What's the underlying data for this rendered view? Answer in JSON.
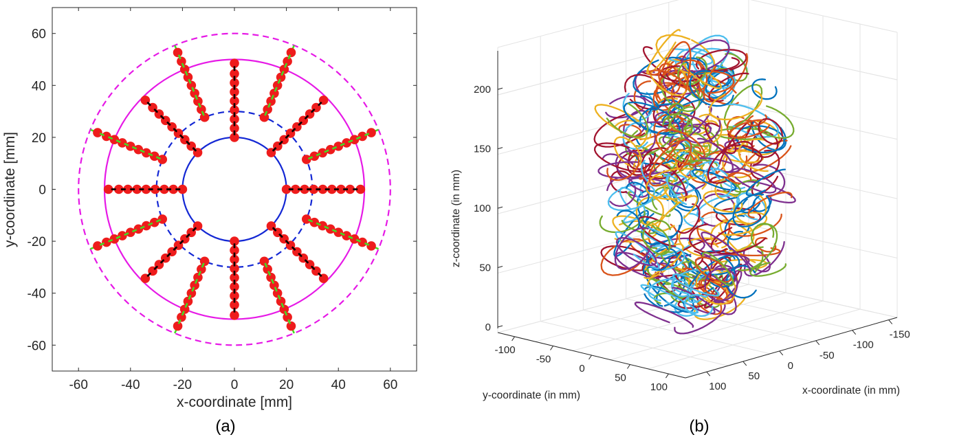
{
  "chart_data": [
    {
      "type": "scatter",
      "panel_label": "(a)",
      "xlabel": "x-coordinate [mm]",
      "ylabel": "y-coordinate [mm]",
      "xlim": [
        -70,
        70
      ],
      "ylim": [
        -70,
        70
      ],
      "xticks": [
        -60,
        -40,
        -20,
        0,
        20,
        40,
        60
      ],
      "yticks": [
        -60,
        -40,
        -20,
        0,
        20,
        40,
        60
      ],
      "grid": false,
      "circles": [
        {
          "name": "inner boundary",
          "radius": 20,
          "style": "solid",
          "color": "#1428d4"
        },
        {
          "name": "inner dashed",
          "radius": 30,
          "style": "dashed",
          "color": "#1428d4"
        },
        {
          "name": "outer boundary",
          "radius": 50,
          "style": "solid",
          "color": "#e619e6"
        },
        {
          "name": "outer dashed",
          "radius": 60,
          "style": "dashed",
          "color": "#e619e6"
        }
      ],
      "rays": {
        "count": 16,
        "start_angle_deg": 90,
        "step_deg": 22.5,
        "point_color": "#ee1c1c",
        "black_segment_color": "#000000",
        "green_segment_color": "#44dd22",
        "black_type": {
          "radii": [
            20,
            23.5,
            27,
            30.5,
            34,
            37.5,
            41,
            44.5,
            48.5
          ],
          "span": [
            20,
            48.5
          ]
        },
        "green_type": {
          "radii": [
            30,
            33.3,
            36.7,
            40,
            43.3,
            46.7,
            50,
            53.3,
            57
          ],
          "span": [
            30,
            60
          ]
        },
        "ray_types": [
          "black",
          "green",
          "black",
          "green",
          "black",
          "green",
          "black",
          "green",
          "black",
          "green",
          "black",
          "green",
          "black",
          "green",
          "black",
          "green"
        ]
      }
    },
    {
      "type": "line3d",
      "panel_label": "(b)",
      "xlabel": "x-coordinate (in mm)",
      "ylabel": "y-coordinate (in mm)",
      "zlabel": "z-coordinate (in mm)",
      "xticks": [
        100,
        50,
        0,
        -50,
        -100,
        -150
      ],
      "yticks": [
        -100,
        -50,
        0,
        50,
        100
      ],
      "zticks": [
        0,
        50,
        100,
        150,
        200
      ],
      "series_colors": [
        "#0072bd",
        "#d95319",
        "#edb120",
        "#7e2f8e",
        "#77ac30",
        "#4dbeee",
        "#a2142f"
      ],
      "description_loops": 300
    }
  ]
}
